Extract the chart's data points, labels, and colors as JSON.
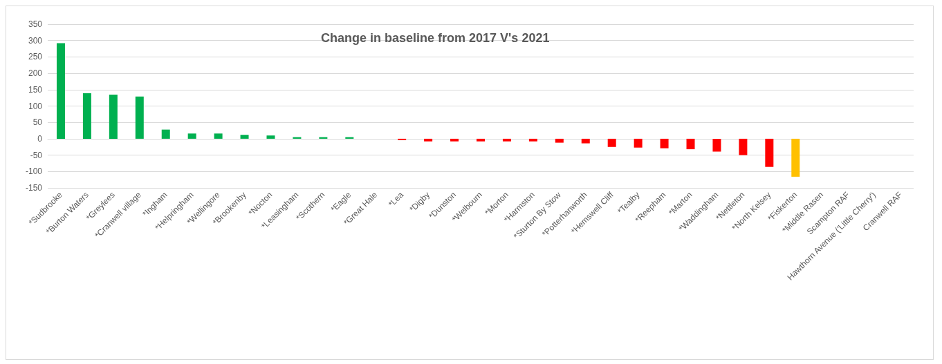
{
  "chart_data": {
    "type": "bar",
    "title": "Change in baseline from 2017 V's 2021",
    "categories": [
      "*Sudbrooke",
      "*Burton Waters",
      "*Greylees",
      "*Cranwell village",
      "*Ingham",
      "*Helpringham",
      "*Wellingore",
      "*Brookenby",
      "*Nocton",
      "*Leasingham",
      "*Scothern",
      "*Eagle",
      "*Great Hale",
      "*Lea",
      "*Digby",
      "*Dunston",
      "*Welbourn",
      "*Morton",
      "*Harmston",
      "*Sturton By Stow",
      "*Potterhanworth",
      "*Hemswell Cliff",
      "*Tealby",
      "*Reepham",
      "*Marton",
      "*Waddingham",
      "*Nettleton",
      "*North Kelsey",
      "*Fiskerton",
      "*Middle Rasen",
      "Scampton RAF",
      "Hawthorn Avenue ('Little Cherry')",
      "Cranwell RAF"
    ],
    "values": [
      292,
      139,
      135,
      129,
      28,
      16,
      16,
      12,
      10,
      5,
      5,
      5,
      0,
      -4,
      -8,
      -8,
      -8,
      -8,
      -8,
      -12,
      -14,
      -25,
      -27,
      -29,
      -32,
      -39,
      -50,
      -86,
      -116,
      null,
      null,
      null,
      null
    ],
    "colors": [
      "#00b050",
      "#00b050",
      "#00b050",
      "#00b050",
      "#00b050",
      "#00b050",
      "#00b050",
      "#00b050",
      "#00b050",
      "#00b050",
      "#00b050",
      "#00b050",
      "#00b050",
      "#ff0000",
      "#ff0000",
      "#ff0000",
      "#ff0000",
      "#ff0000",
      "#ff0000",
      "#ff0000",
      "#ff0000",
      "#ff0000",
      "#ff0000",
      "#ff0000",
      "#ff0000",
      "#ff0000",
      "#ff0000",
      "#ff0000",
      "#ffc000",
      "#ff0000",
      "#ff0000",
      "#ff0000",
      "#ff0000"
    ],
    "ylim": [
      -150,
      350
    ],
    "yticks": [
      -150,
      -100,
      -50,
      0,
      50,
      100,
      150,
      200,
      250,
      300,
      350
    ],
    "grid": "y"
  }
}
